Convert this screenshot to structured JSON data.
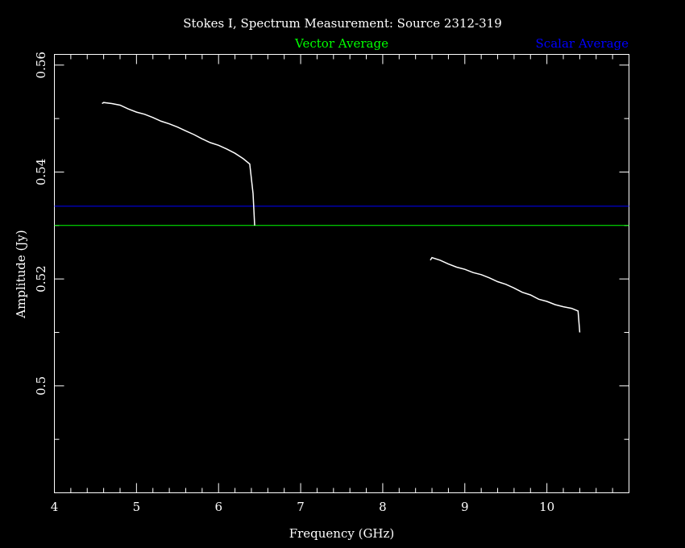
{
  "chart_data": {
    "type": "line",
    "title": "Stokes I, Spectrum Measurement: Source 2312-319",
    "xlabel": "Frequency (GHz)",
    "ylabel": "Amplitude (Jy)",
    "xlim": [
      4,
      11
    ],
    "ylim": [
      0.48,
      0.562
    ],
    "x_ticks": [
      4,
      5,
      6,
      7,
      8,
      9,
      10
    ],
    "x_tick_labels": [
      "4",
      "5",
      "6",
      "7",
      "8",
      "9",
      "10"
    ],
    "y_ticks": [
      0.5,
      0.52,
      0.54,
      0.56
    ],
    "y_tick_labels": [
      "0.5",
      "0.52",
      "0.54",
      "0.56"
    ],
    "grid": false,
    "legend": [
      {
        "label": "Vector Average",
        "color": "#00ff00"
      },
      {
        "label": "Scalar Average",
        "color": "#0000ff"
      }
    ],
    "reference_lines": [
      {
        "name": "Vector Average",
        "y": 0.53,
        "color": "#00ff00"
      },
      {
        "name": "Scalar Average",
        "y": 0.5336,
        "color": "#0000ff"
      }
    ],
    "series": [
      {
        "color": "#ffffff",
        "x": [
          4.58,
          4.6,
          4.7,
          4.8,
          4.9,
          5.0,
          5.1,
          5.2,
          5.3,
          5.4,
          5.5,
          5.6,
          5.7,
          5.8,
          5.9,
          6.0,
          6.1,
          6.2,
          6.3,
          6.38,
          6.42,
          6.44
        ],
        "y": [
          0.5528,
          0.553,
          0.5528,
          0.5525,
          0.5518,
          0.5512,
          0.5508,
          0.5502,
          0.5495,
          0.549,
          0.5484,
          0.5477,
          0.547,
          0.5462,
          0.5455,
          0.545,
          0.5443,
          0.5435,
          0.5425,
          0.5415,
          0.536,
          0.53
        ]
      },
      {
        "color": "#ffffff",
        "x": [
          8.58,
          8.6,
          8.7,
          8.8,
          8.9,
          9.0,
          9.1,
          9.2,
          9.3,
          9.4,
          9.5,
          9.6,
          9.7,
          9.8,
          9.9,
          10.0,
          10.1,
          10.2,
          10.3,
          10.38,
          10.4
        ],
        "y": [
          0.5235,
          0.524,
          0.5235,
          0.5228,
          0.5222,
          0.5218,
          0.5212,
          0.5208,
          0.5202,
          0.5195,
          0.519,
          0.5183,
          0.5175,
          0.517,
          0.5162,
          0.5158,
          0.5152,
          0.5148,
          0.5145,
          0.514,
          0.51
        ]
      }
    ]
  }
}
